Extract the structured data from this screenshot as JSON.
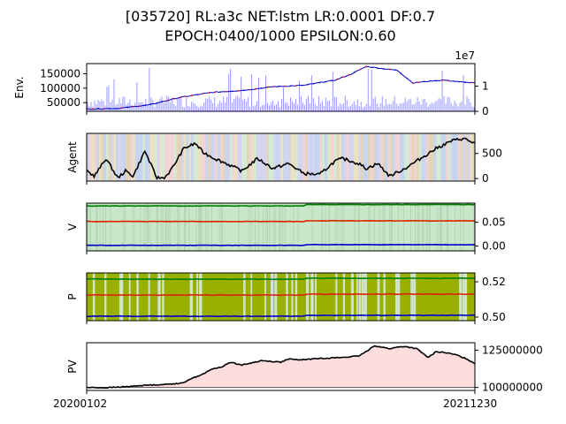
{
  "title_lines": [
    "[035720] RL:a3c NET:lstm LR:0.0001 DF:0.7",
    "EPOCH:0400/1000 EPSILON:0.60"
  ],
  "colors": {
    "price_line": "#0000cc",
    "buy_marker": "#ff0000",
    "volume_bar": "#9999ff",
    "agent_line": "#000000",
    "v_fill": "#c8e6c8",
    "v_green": "#008000",
    "v_red": "#dd2200",
    "v_blue": "#0000cc",
    "p_fill": "#99b000",
    "pv_fill": "#ffdddd",
    "pv_line": "#000000",
    "pv_baseline": "#555555"
  },
  "chart_data": [
    {
      "type": "line",
      "panel": "env",
      "ylabel": "Env.",
      "yticks_left": [
        "50000",
        "100000",
        "150000"
      ],
      "yticks_right": [
        "0",
        "1"
      ],
      "right_axis_offset": "1e7",
      "ylim": [
        20000,
        185000
      ],
      "price_series": {
        "x": [
          0,
          0.08,
          0.16,
          0.24,
          0.32,
          0.4,
          0.48,
          0.56,
          0.64,
          0.68,
          0.72,
          0.76,
          0.8,
          0.84,
          0.88,
          0.92,
          0.96,
          1.0
        ],
        "values": [
          28000,
          30000,
          42000,
          68000,
          85000,
          92000,
          105000,
          110000,
          128000,
          148000,
          175000,
          168000,
          162000,
          118000,
          124000,
          128000,
          122000,
          118000
        ]
      },
      "volume_note": "volume bars on secondary axis"
    },
    {
      "type": "line",
      "panel": "agent",
      "ylabel": "Agent",
      "yticks_right": [
        "0",
        "500"
      ],
      "ylim": [
        -50,
        900
      ],
      "series": {
        "x": [
          0,
          0.02,
          0.05,
          0.08,
          0.1,
          0.12,
          0.15,
          0.18,
          0.2,
          0.22,
          0.25,
          0.28,
          0.3,
          0.33,
          0.36,
          0.4,
          0.44,
          0.48,
          0.52,
          0.56,
          0.6,
          0.64,
          0.66,
          0.7,
          0.72,
          0.75,
          0.78,
          0.82,
          0.86,
          0.9,
          0.94,
          0.97,
          1.0
        ],
        "values": [
          150,
          50,
          400,
          10,
          150,
          50,
          550,
          20,
          10,
          200,
          600,
          700,
          520,
          400,
          300,
          150,
          400,
          200,
          300,
          100,
          80,
          350,
          400,
          300,
          200,
          300,
          50,
          200,
          400,
          600,
          750,
          800,
          700
        ]
      }
    },
    {
      "type": "line",
      "panel": "v",
      "ylabel": "V",
      "yticks_right": [
        "0.00",
        "0.05"
      ],
      "ylim": [
        -0.01,
        0.09
      ],
      "series": [
        {
          "values_start": 0.083,
          "values_end": 0.087
        },
        {
          "values_start": 0.051,
          "values_end": 0.053
        },
        {
          "values_start": 0.001,
          "values_end": 0.003
        }
      ]
    },
    {
      "type": "line",
      "panel": "p",
      "ylabel": "P",
      "yticks_right": [
        "0.50",
        "0.52"
      ],
      "ylim": [
        0.498,
        0.525
      ],
      "series": [
        {
          "values_start": 0.5215,
          "values_end": 0.522
        },
        {
          "values_start": 0.5125,
          "values_end": 0.513
        },
        {
          "values_start": 0.5005,
          "values_end": 0.501
        }
      ]
    },
    {
      "type": "line",
      "panel": "pv",
      "ylabel": "PV",
      "yticks_right": [
        "100000000",
        "125000000"
      ],
      "ylim": [
        98000000,
        130000000
      ],
      "xticks": [
        "20200102",
        "20211230"
      ],
      "series": {
        "x": [
          0,
          0.05,
          0.1,
          0.15,
          0.2,
          0.25,
          0.26,
          0.3,
          0.32,
          0.35,
          0.37,
          0.4,
          0.45,
          0.5,
          0.52,
          0.55,
          0.6,
          0.65,
          0.7,
          0.72,
          0.74,
          0.78,
          0.8,
          0.82,
          0.85,
          0.88,
          0.9,
          0.92,
          0.95,
          0.98,
          1.0
        ],
        "values": [
          100000000,
          99800000,
          100500000,
          101500000,
          102000000,
          103000000,
          105000000,
          109000000,
          112000000,
          114000000,
          117000000,
          115000000,
          118000000,
          117000000,
          119000000,
          118500000,
          119500000,
          120000000,
          121000000,
          124000000,
          128000000,
          126000000,
          127000000,
          127500000,
          126000000,
          120000000,
          124000000,
          123500000,
          122000000,
          119000000,
          116000000
        ]
      }
    }
  ]
}
